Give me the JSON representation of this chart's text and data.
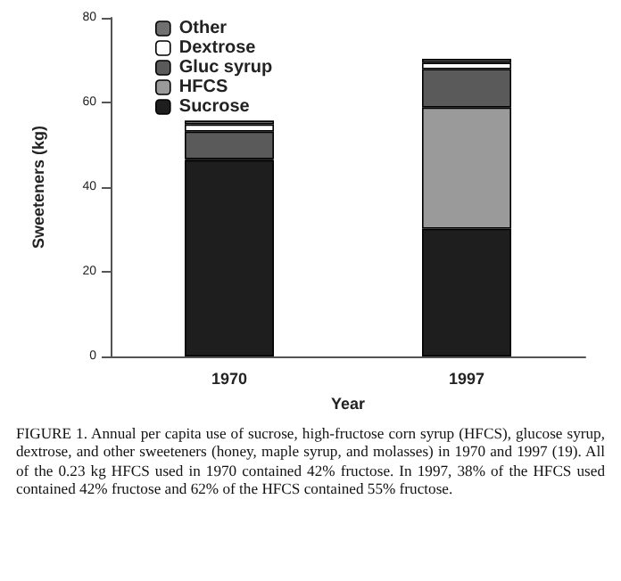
{
  "chart_data": {
    "type": "bar",
    "stacked": true,
    "xlabel": "Year",
    "ylabel": "Sweeteners (kg)",
    "categories": [
      "1970",
      "1997"
    ],
    "series": [
      {
        "name": "Sucrose",
        "color": "#1e1e1e",
        "values": [
          46.4,
          30.2
        ]
      },
      {
        "name": "HFCS",
        "color": "#9a9a9a",
        "values": [
          0.23,
          28.6
        ]
      },
      {
        "name": "Gluc syrup",
        "color": "#5a5a5a",
        "values": [
          6.5,
          9.1
        ]
      },
      {
        "name": "Dextrose",
        "color": "#ffffff",
        "values": [
          1.7,
          1.5
        ]
      },
      {
        "name": "Other",
        "color": "#707070",
        "values": [
          0.9,
          0.9
        ]
      }
    ],
    "ylim": [
      0,
      80
    ],
    "yticks": [
      0,
      20,
      40,
      60,
      80
    ],
    "grid": false,
    "legend": "top left",
    "annotations": [
      "FIGURE 1. Annual per capita use of sucrose, high-fructose corn syrup (HFCS), glucose syrup, dextrose, and other sweeteners (honey, maple syrup, and molasses) in 1970 and 1997 (19). All of the 0.23 kg HFCS used in 1970 contained 42% fructose. In 1997, 38% of the HFCS used contained 42% fructose and 62% of the HFCS contained 55% fructose."
    ]
  }
}
